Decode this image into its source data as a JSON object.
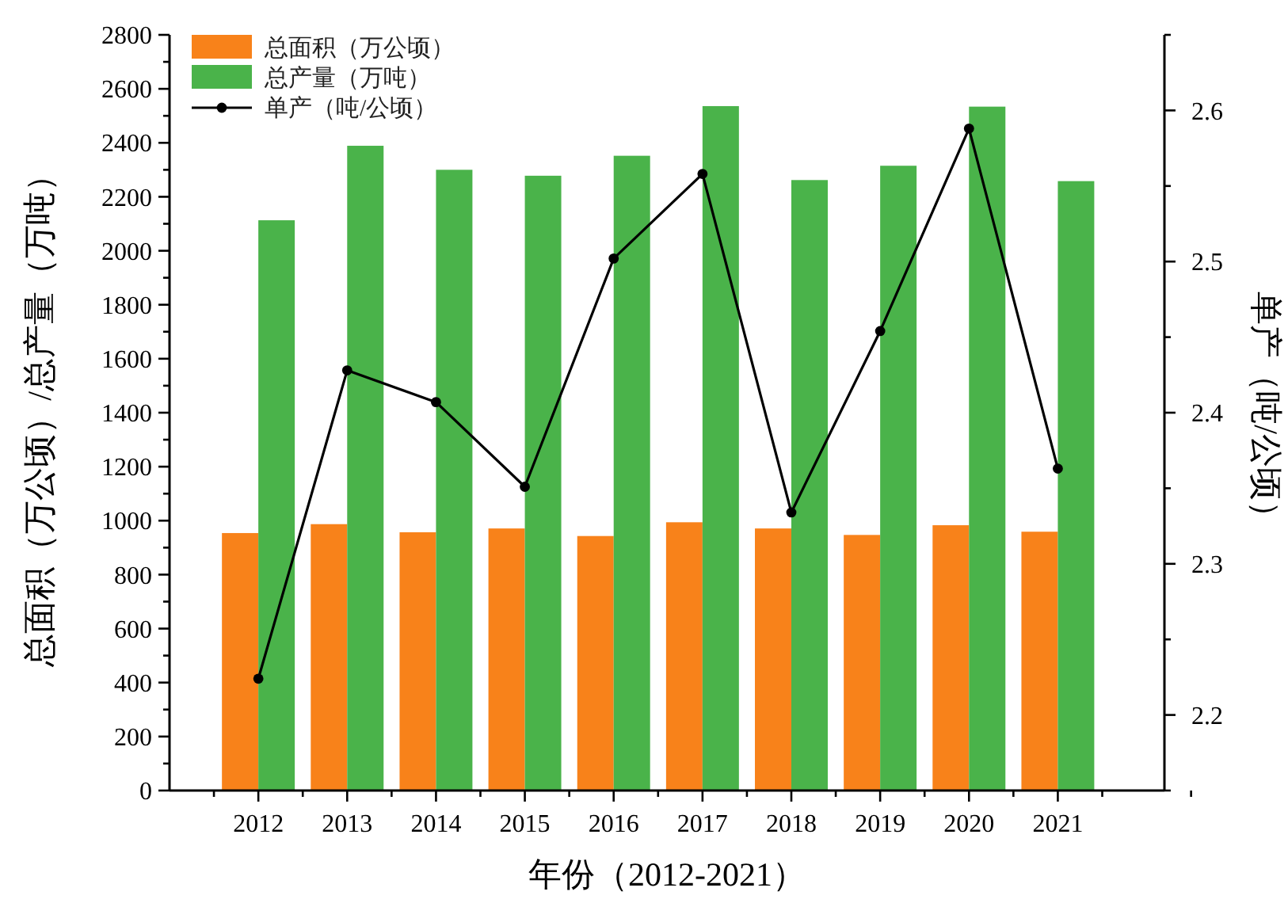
{
  "chart_data": {
    "type": "bar",
    "xlabel": "年份（2012-2021）",
    "ylabel": "总面积（万公顷）/总产量（万吨）",
    "y2label": "单产（吨/公顷）",
    "categories": [
      "2012",
      "2013",
      "2014",
      "2015",
      "2016",
      "2017",
      "2018",
      "2019",
      "2020",
      "2021"
    ],
    "series": [
      {
        "name": "总面积（万公顷）",
        "color": "#f8821a",
        "values": [
          954,
          987,
          957,
          971,
          943,
          994,
          971,
          947,
          983,
          959
        ]
      },
      {
        "name": "总产量（万吨）",
        "color": "#4ab34a",
        "values": [
          2113,
          2389,
          2300,
          2278,
          2352,
          2536,
          2262,
          2315,
          2534,
          2258
        ]
      },
      {
        "name": "单产（吨/公顷）",
        "type": "line",
        "axis": "y2",
        "color": "#000000",
        "marker": "circle",
        "values": [
          2.224,
          2.428,
          2.407,
          2.351,
          2.502,
          2.558,
          2.334,
          2.454,
          2.588,
          2.363
        ]
      }
    ],
    "ylim": [
      0,
      2800
    ],
    "yticks": [
      0,
      {
        "value": 100,
        "label": null
      },
      200,
      {
        "value": 300,
        "label": null
      },
      400,
      {
        "value": 500,
        "label": null
      },
      600,
      {
        "value": 700,
        "label": null
      },
      800,
      {
        "value": 900,
        "label": null
      },
      1000,
      {
        "value": 1100,
        "label": null
      },
      1200,
      {
        "value": 1300,
        "label": null
      },
      1400,
      {
        "value": 1500,
        "label": null
      },
      1600,
      {
        "value": 1700,
        "label": null
      },
      1800,
      {
        "value": 1900,
        "label": null
      },
      2000,
      {
        "value": 2100,
        "label": null
      },
      2200,
      {
        "value": 2300,
        "label": null
      },
      2400,
      {
        "value": 2500,
        "label": null
      },
      2600,
      {
        "value": 2700,
        "label": null
      },
      2800
    ],
    "y2lim": [
      2.15,
      2.65
    ],
    "y2ticks": [
      {
        "value": 2.15,
        "label": null
      },
      {
        "value": 2.2,
        "label": "2.2"
      },
      {
        "value": 2.25,
        "label": null
      },
      {
        "value": 2.3,
        "label": "2.3"
      },
      {
        "value": 2.35,
        "label": null
      },
      {
        "value": 2.4,
        "label": "2.4"
      },
      {
        "value": 2.45,
        "label": null
      },
      {
        "value": 2.5,
        "label": "2.5"
      },
      {
        "value": 2.55,
        "label": null
      },
      {
        "value": 2.6,
        "label": "2.6"
      },
      {
        "value": 2.65,
        "label": null
      }
    ],
    "legend": "top left",
    "grid": false
  }
}
